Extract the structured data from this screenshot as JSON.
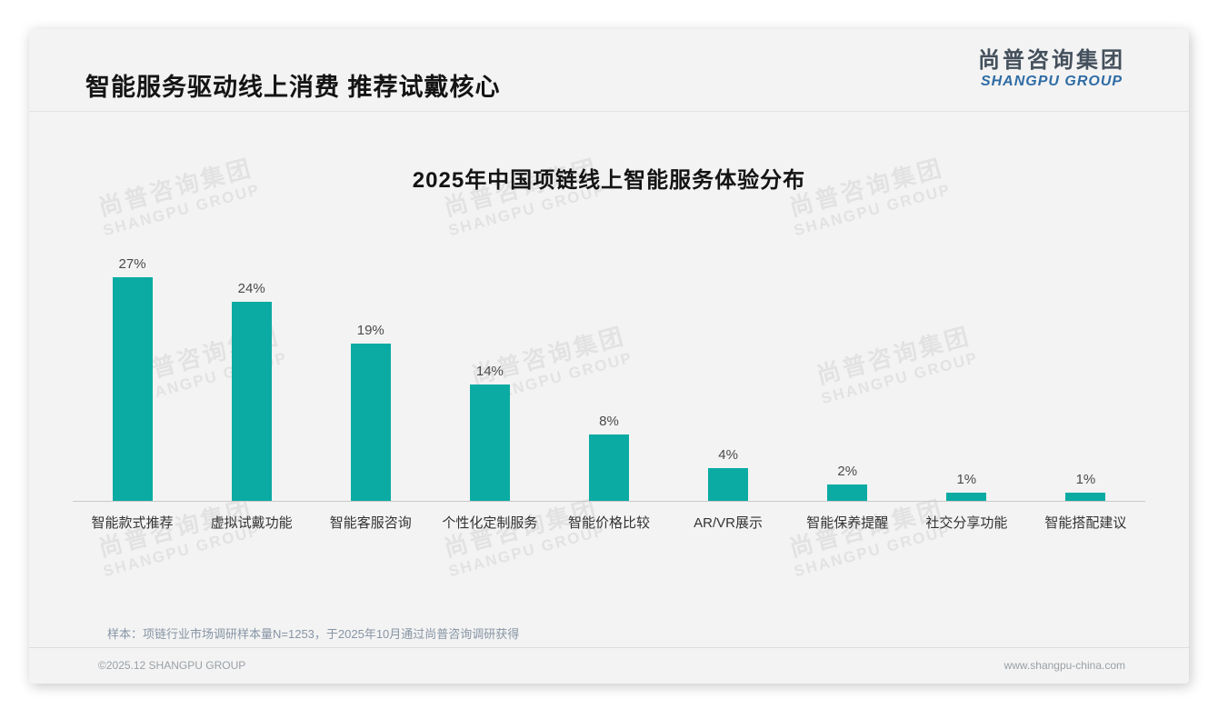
{
  "page": {
    "title": "智能服务驱动线上消费 推荐试戴核心",
    "logo": {
      "cn": "尚普咨询集团",
      "en": "SHANGPU GROUP"
    },
    "watermark": {
      "cn": "尚普咨询集团",
      "en": "SHANGPU GROUP"
    },
    "note": "样本：项链行业市场调研样本量N=1253，于2025年10月通过尚普咨询调研获得",
    "footer": {
      "left": "©2025.12 SHANGPU GROUP",
      "right": "www.shangpu-china.com"
    }
  },
  "chart_data": {
    "type": "bar",
    "title": "2025年中国项链线上智能服务体验分布",
    "categories": [
      "智能款式推荐",
      "虚拟试戴功能",
      "智能客服咨询",
      "个性化定制服务",
      "智能价格比较",
      "AR/VR展示",
      "智能保养提醒",
      "社交分享功能",
      "智能搭配建议"
    ],
    "values": [
      27,
      24,
      19,
      14,
      8,
      4,
      2,
      1,
      1
    ],
    "value_labels": [
      "27%",
      "24%",
      "19%",
      "14%",
      "8%",
      "4%",
      "2%",
      "1%",
      "1%"
    ],
    "bar_color": "#0baba3",
    "xlabel": "",
    "ylabel": "",
    "ylim": [
      0,
      30
    ],
    "grid": false,
    "legend": "none"
  }
}
